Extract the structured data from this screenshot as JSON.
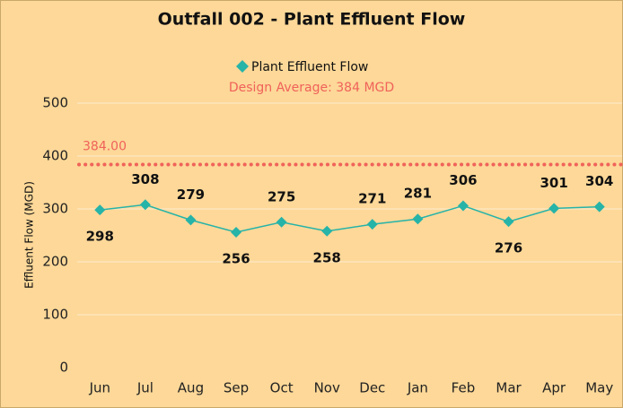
{
  "chart_data": {
    "type": "line",
    "title": "Outfall 002 - Plant Effluent Flow",
    "y_label": "Effluent Flow (MGD)",
    "categories": [
      "Jun",
      "Jul",
      "Aug",
      "Sep",
      "Oct",
      "Nov",
      "Dec",
      "Jan",
      "Feb",
      "Mar",
      "Apr",
      "May"
    ],
    "series": [
      {
        "name": "Plant Effluent Flow",
        "color": "#26b3a8",
        "values": [
          298,
          308,
          279,
          256,
          275,
          258,
          271,
          281,
          306,
          276,
          301,
          304
        ]
      }
    ],
    "reference_line": {
      "name": "Design Average: 384 MGD",
      "value": 384,
      "label": "384.00",
      "color": "#f0625a"
    },
    "ylim": [
      0,
      500
    ],
    "yticks": [
      0,
      100,
      200,
      300,
      400,
      500
    ],
    "grid": true,
    "legend": "top"
  }
}
